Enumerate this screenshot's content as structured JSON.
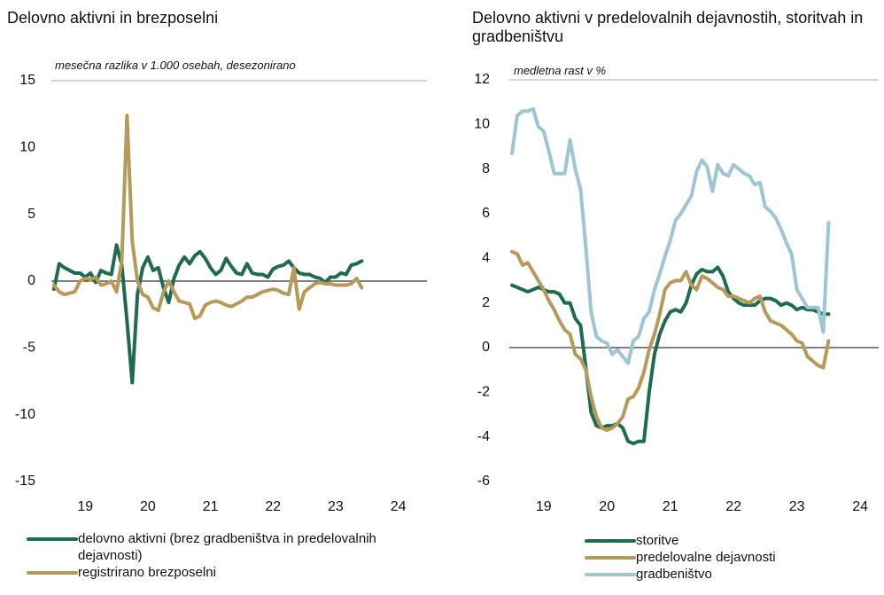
{
  "chart_data": [
    {
      "type": "line",
      "title": "Delovno aktivni in brezposelni",
      "subtitle": "mesečna razlika v 1.000 osebah, desezonirano",
      "categories": [
        null,
        null,
        null,
        null,
        null,
        null,
        "19",
        null,
        null,
        null,
        null,
        null,
        null,
        null,
        null,
        null,
        null,
        null,
        "20",
        null,
        null,
        null,
        null,
        null,
        null,
        null,
        null,
        null,
        null,
        null,
        "21",
        null,
        null,
        null,
        null,
        null,
        null,
        null,
        null,
        null,
        null,
        null,
        "22",
        null,
        null,
        null,
        null,
        null,
        null,
        null,
        null,
        null,
        null,
        null,
        "23",
        null,
        null,
        null,
        null,
        null,
        null,
        null,
        null,
        null,
        null,
        null,
        "24",
        null,
        null,
        null,
        null,
        null
      ],
      "ylim": [
        -15,
        15
      ],
      "yticks": [
        -15,
        -10,
        -5,
        0,
        5,
        10,
        15
      ],
      "series": [
        {
          "name": "delovno aktivni (brez gradbeništva in predelovalnih dejavnosti)",
          "color": "#1f6b4f",
          "values": [
            -0.6,
            1.3,
            1.0,
            0.8,
            0.6,
            0.6,
            0.3,
            0.6,
            -0.1,
            0.8,
            0.6,
            0.5,
            2.7,
            1.2,
            -3.0,
            -7.6,
            -1.0,
            1.0,
            1.8,
            0.8,
            1.0,
            -0.5,
            -1.6,
            0.2,
            1.2,
            1.8,
            1.3,
            1.9,
            2.2,
            1.7,
            1.0,
            0.5,
            0.8,
            1.7,
            1.1,
            0.6,
            0.5,
            1.3,
            0.6,
            0.5,
            0.5,
            0.3,
            0.9,
            1.1,
            1.2,
            1.5,
            1.0,
            0.6,
            0.5,
            0.5,
            0.3,
            0.2,
            -0.1,
            0.3,
            0.3,
            0.6,
            0.5,
            1.2,
            1.3,
            1.5,
            null,
            null,
            null,
            null,
            null,
            null,
            null,
            null,
            null,
            null,
            null,
            null
          ]
        },
        {
          "name": "registrirano brezposelni",
          "color": "#b59a5a",
          "values": [
            -0.3,
            -0.8,
            -1.0,
            -0.9,
            -0.8,
            0.0,
            0.2,
            0.1,
            0.3,
            -0.3,
            -0.2,
            0.0,
            -0.8,
            1.5,
            12.4,
            3.0,
            0.0,
            -1.0,
            -1.2,
            -2.0,
            -2.2,
            -0.8,
            0.0,
            -0.8,
            -1.5,
            -1.6,
            -1.7,
            -2.8,
            -2.6,
            -1.8,
            -1.6,
            -1.5,
            -1.6,
            -1.8,
            -1.9,
            -1.7,
            -1.5,
            -1.2,
            -1.2,
            -1.0,
            -0.8,
            -0.7,
            -0.6,
            -0.7,
            -0.9,
            -1.0,
            1.0,
            -2.1,
            -0.8,
            -0.5,
            -0.2,
            -0.1,
            -0.2,
            -0.2,
            -0.3,
            -0.3,
            -0.3,
            -0.2,
            0.2,
            -0.5,
            null,
            null,
            null,
            null,
            null,
            null,
            null,
            null,
            null,
            null,
            null,
            null
          ]
        }
      ]
    },
    {
      "type": "line",
      "title": "Delovno aktivni v predelovalnih dejavnostih, storitvah in gradbeništvu",
      "subtitle": "medletna rast v %",
      "categories": [
        null,
        null,
        null,
        null,
        null,
        null,
        "19",
        null,
        null,
        null,
        null,
        null,
        null,
        null,
        null,
        null,
        null,
        null,
        "20",
        null,
        null,
        null,
        null,
        null,
        null,
        null,
        null,
        null,
        null,
        null,
        "21",
        null,
        null,
        null,
        null,
        null,
        null,
        null,
        null,
        null,
        null,
        null,
        "22",
        null,
        null,
        null,
        null,
        null,
        null,
        null,
        null,
        null,
        null,
        null,
        "23",
        null,
        null,
        null,
        null,
        null,
        null,
        null,
        null,
        null,
        null,
        null,
        "24",
        null,
        null,
        null
      ],
      "ylim": [
        -6,
        12
      ],
      "yticks": [
        -6,
        -4,
        -2,
        0,
        2,
        4,
        6,
        8,
        10,
        12
      ],
      "series": [
        {
          "name": "storitve",
          "color": "#1f6b4f",
          "values": [
            2.8,
            2.7,
            2.6,
            2.5,
            2.6,
            2.7,
            2.6,
            2.5,
            2.5,
            2.4,
            2.0,
            2.0,
            1.3,
            1.0,
            -0.9,
            -2.9,
            -3.5,
            -3.6,
            -3.5,
            -3.5,
            -3.4,
            -3.6,
            -4.2,
            -4.3,
            -4.2,
            -4.2,
            -2.0,
            -0.3,
            0.6,
            1.2,
            1.6,
            1.7,
            1.6,
            2.0,
            2.8,
            3.3,
            3.5,
            3.4,
            3.4,
            3.6,
            3.2,
            2.5,
            2.2,
            2.0,
            1.9,
            1.9,
            1.9,
            2.1,
            2.2,
            2.2,
            2.1,
            1.9,
            2.0,
            1.9,
            1.7,
            1.8,
            1.7,
            1.7,
            1.6,
            1.5,
            1.5,
            null,
            null,
            null,
            null,
            null,
            null,
            null,
            null,
            null
          ]
        },
        {
          "name": "predelovalne dejavnosti",
          "color": "#b59a5a",
          "values": [
            4.3,
            4.2,
            3.7,
            3.8,
            3.4,
            3.0,
            2.6,
            2.1,
            1.7,
            1.2,
            0.8,
            0.6,
            -0.3,
            -0.5,
            -1.0,
            -2.2,
            -3.1,
            -3.6,
            -3.7,
            -3.6,
            -3.4,
            -3.1,
            -2.3,
            -2.2,
            -1.8,
            -1.1,
            -0.1,
            0.6,
            1.5,
            2.6,
            2.9,
            3.0,
            3.0,
            3.4,
            2.8,
            2.6,
            3.2,
            3.1,
            2.9,
            2.7,
            2.6,
            2.3,
            2.3,
            2.2,
            2.1,
            2.0,
            2.2,
            2.3,
            1.6,
            1.2,
            1.1,
            1.0,
            0.8,
            0.6,
            0.3,
            0.2,
            -0.4,
            -0.6,
            -0.8,
            -0.9,
            0.3,
            null,
            null,
            null,
            null,
            null,
            null,
            null,
            null,
            null
          ]
        },
        {
          "name": "gradbeništvo",
          "color": "#9ec5d3",
          "values": [
            8.7,
            10.4,
            10.6,
            10.6,
            10.7,
            9.9,
            9.7,
            8.8,
            7.8,
            7.8,
            7.8,
            9.3,
            8.0,
            7.1,
            4.5,
            1.6,
            0.5,
            0.3,
            0.2,
            -0.3,
            -0.1,
            -0.4,
            -0.7,
            0.3,
            0.5,
            1.3,
            1.6,
            2.6,
            3.3,
            4.1,
            4.8,
            5.7,
            6.0,
            6.4,
            6.8,
            7.9,
            8.4,
            8.1,
            7.0,
            8.2,
            7.8,
            7.7,
            8.2,
            8.0,
            7.8,
            7.7,
            7.3,
            7.4,
            6.3,
            6.1,
            5.8,
            5.3,
            4.7,
            4.2,
            2.6,
            2.2,
            1.8,
            1.8,
            1.8,
            0.7,
            5.6,
            null,
            null,
            null,
            null,
            null,
            null,
            null,
            null,
            null
          ]
        }
      ]
    }
  ]
}
